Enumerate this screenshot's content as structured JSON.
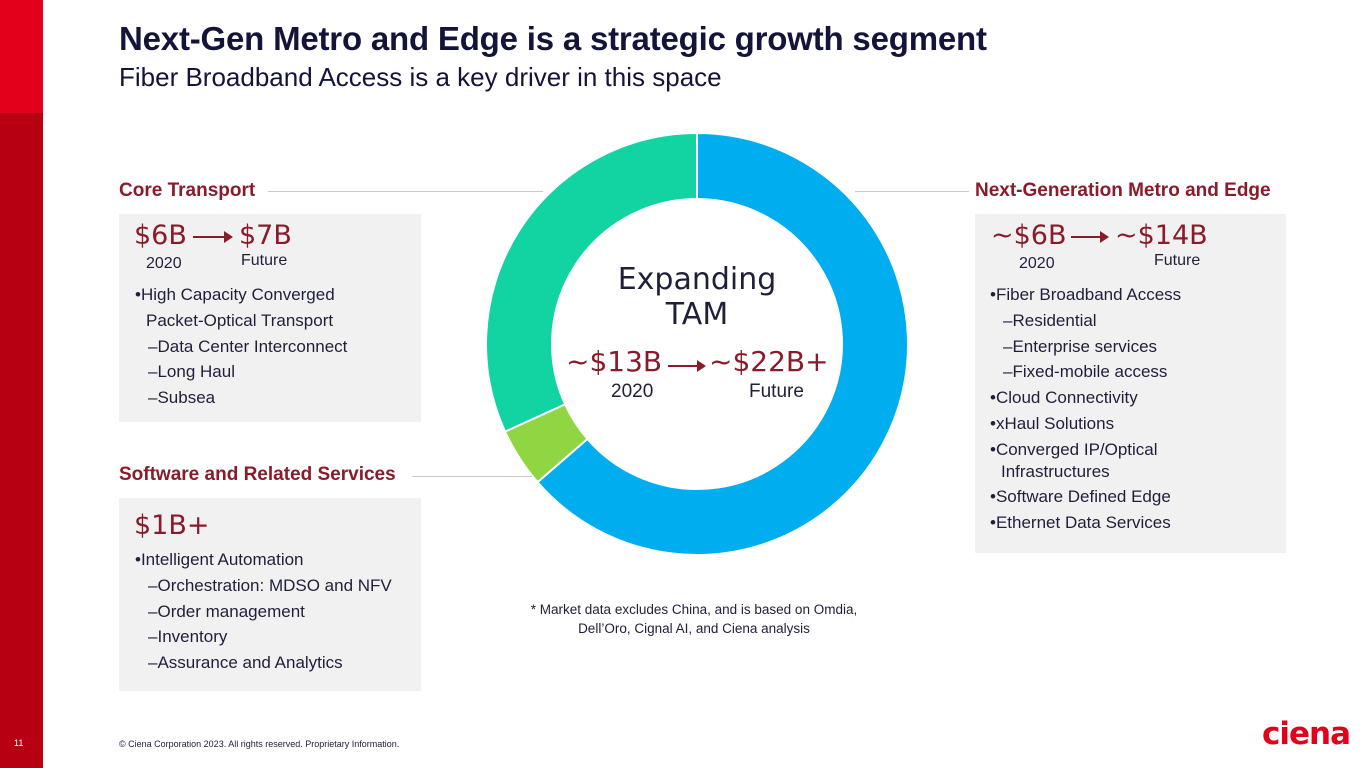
{
  "page": {
    "title": "Next-Gen Metro and Edge is a strategic growth segment",
    "subtitle": "Fiber Broadband Access is a key driver in this space",
    "page_number": "11",
    "copyright": "© Ciena Corporation 2023. All rights reserved. Proprietary Information.",
    "logo_text": "ciena",
    "footnote_line1": "* Market data excludes China, and is based on Omdia,",
    "footnote_line2": "Dell’Oro, Cignal AI, and Ciena analysis"
  },
  "colors": {
    "brand_red": "#e2001a",
    "dark_red": "#8b1a2b",
    "blue": "#00aeef",
    "teal": "#12d4a3",
    "lime": "#8fd642"
  },
  "core_transport": {
    "heading": "Core Transport",
    "from_value": "$6B",
    "from_label": "2020",
    "to_value": "$7B",
    "to_label": "Future",
    "bullets": [
      {
        "level": 1,
        "text": "High Capacity Converged"
      },
      {
        "level": 0,
        "text": "Packet-Optical Transport"
      },
      {
        "level": 2,
        "text": "Data Center Interconnect"
      },
      {
        "level": 2,
        "text": "Long Haul"
      },
      {
        "level": 2,
        "text": "Subsea"
      }
    ]
  },
  "software_services": {
    "heading": "Software and Related Services",
    "value": "$1B+",
    "bullets": [
      {
        "level": 1,
        "text": "Intelligent Automation"
      },
      {
        "level": 2,
        "text": "Orchestration: MDSO and NFV"
      },
      {
        "level": 2,
        "text": "Order management"
      },
      {
        "level": 2,
        "text": "Inventory"
      },
      {
        "level": 2,
        "text": "Assurance and Analytics"
      }
    ]
  },
  "metro_edge": {
    "heading": "Next-Generation Metro and Edge",
    "from_value": "~$6B",
    "from_label": "2020",
    "to_value": "~$14B",
    "to_label": "Future",
    "bullets": [
      {
        "level": 1,
        "text": "Fiber Broadband Access"
      },
      {
        "level": 2,
        "text": "Residential"
      },
      {
        "level": 2,
        "text": "Enterprise services"
      },
      {
        "level": 2,
        "text": "Fixed-mobile access"
      },
      {
        "level": 1,
        "text": "Cloud Connectivity"
      },
      {
        "level": 1,
        "text": "xHaul Solutions"
      },
      {
        "level": 1,
        "text": "Converged IP/Optical"
      },
      {
        "level": 0,
        "text": "Infrastructures"
      },
      {
        "level": 1,
        "text": "Software Defined Edge"
      },
      {
        "level": 1,
        "text": "Ethernet Data Services"
      }
    ]
  },
  "chart_data": {
    "type": "pie",
    "style": "donut",
    "title": "Expanding TAM",
    "center_from_value": "~$13B",
    "center_from_label": "2020",
    "center_to_value": "~$22B+",
    "center_to_label": "Future",
    "start": "12 o'clock",
    "direction": "clockwise",
    "slices": [
      {
        "name": "Next-Generation Metro and Edge",
        "value": 14,
        "color": "#00aeef"
      },
      {
        "name": "Software and Related Services",
        "value": 1,
        "color": "#8fd642"
      },
      {
        "name": "Core Transport",
        "value": 7,
        "color": "#12d4a3"
      }
    ],
    "unit": "$B (Future)"
  }
}
